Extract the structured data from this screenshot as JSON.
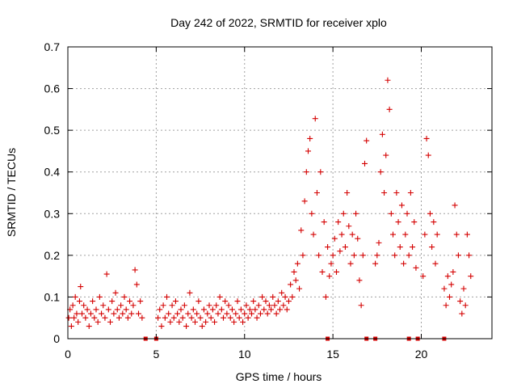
{
  "chart_data": {
    "type": "scatter",
    "title": "Day 242 of 2022, SRMTID for receiver xplo",
    "xlabel": "GPS time / hours",
    "ylabel": "SRMTID / TECUs",
    "xlim": [
      0,
      24
    ],
    "ylim": [
      0,
      0.7
    ],
    "xticks": [
      0,
      5,
      10,
      15,
      20
    ],
    "xtick_labels": [
      "0",
      "5",
      "10",
      "15",
      "20"
    ],
    "yticks": [
      0,
      0.1,
      0.2,
      0.3,
      0.4,
      0.5,
      0.6,
      0.7
    ],
    "ytick_labels": [
      "0",
      "0.1",
      "0.2",
      "0.3",
      "0.4",
      "0.5",
      "0.6",
      "0.7"
    ],
    "grid": true,
    "marker": "+",
    "series_color": "#d40000",
    "series": [
      {
        "name": "SRMTID",
        "points": [
          [
            0.05,
            0.05
          ],
          [
            0.12,
            0.07
          ],
          [
            0.2,
            0.03
          ],
          [
            0.28,
            0.08
          ],
          [
            0.35,
            0.05
          ],
          [
            0.42,
            0.1
          ],
          [
            0.5,
            0.06
          ],
          [
            0.58,
            0.04
          ],
          [
            0.66,
            0.09
          ],
          [
            0.72,
            0.125
          ],
          [
            0.8,
            0.06
          ],
          [
            0.9,
            0.08
          ],
          [
            1.0,
            0.05
          ],
          [
            1.1,
            0.07
          ],
          [
            1.2,
            0.03
          ],
          [
            1.3,
            0.06
          ],
          [
            1.4,
            0.09
          ],
          [
            1.5,
            0.05
          ],
          [
            1.6,
            0.07
          ],
          [
            1.7,
            0.04
          ],
          [
            1.8,
            0.1
          ],
          [
            1.9,
            0.06
          ],
          [
            2.0,
            0.08
          ],
          [
            2.1,
            0.05
          ],
          [
            2.2,
            0.155
          ],
          [
            2.3,
            0.07
          ],
          [
            2.4,
            0.04
          ],
          [
            2.5,
            0.09
          ],
          [
            2.6,
            0.06
          ],
          [
            2.7,
            0.11
          ],
          [
            2.8,
            0.07
          ],
          [
            2.9,
            0.05
          ],
          [
            3.0,
            0.08
          ],
          [
            3.1,
            0.06
          ],
          [
            3.2,
            0.1
          ],
          [
            3.3,
            0.07
          ],
          [
            3.4,
            0.05
          ],
          [
            3.5,
            0.09
          ],
          [
            3.6,
            0.06
          ],
          [
            3.7,
            0.08
          ],
          [
            3.8,
            0.165
          ],
          [
            3.9,
            0.13
          ],
          [
            4.0,
            0.06
          ],
          [
            4.1,
            0.09
          ],
          [
            4.2,
            0.05
          ],
          [
            5.1,
            0.05
          ],
          [
            5.2,
            0.07
          ],
          [
            5.3,
            0.03
          ],
          [
            5.4,
            0.08
          ],
          [
            5.5,
            0.05
          ],
          [
            5.6,
            0.1
          ],
          [
            5.7,
            0.06
          ],
          [
            5.8,
            0.04
          ],
          [
            5.9,
            0.08
          ],
          [
            6.0,
            0.05
          ],
          [
            6.1,
            0.09
          ],
          [
            6.2,
            0.06
          ],
          [
            6.3,
            0.04
          ],
          [
            6.4,
            0.07
          ],
          [
            6.5,
            0.05
          ],
          [
            6.6,
            0.08
          ],
          [
            6.7,
            0.03
          ],
          [
            6.8,
            0.06
          ],
          [
            6.9,
            0.11
          ],
          [
            7.0,
            0.05
          ],
          [
            7.1,
            0.07
          ],
          [
            7.2,
            0.04
          ],
          [
            7.3,
            0.06
          ],
          [
            7.4,
            0.09
          ],
          [
            7.5,
            0.05
          ],
          [
            7.6,
            0.03
          ],
          [
            7.7,
            0.07
          ],
          [
            7.8,
            0.04
          ],
          [
            7.9,
            0.06
          ],
          [
            8.0,
            0.08
          ],
          [
            8.1,
            0.05
          ],
          [
            8.2,
            0.07
          ],
          [
            8.3,
            0.04
          ],
          [
            8.4,
            0.08
          ],
          [
            8.5,
            0.06
          ],
          [
            8.6,
            0.1
          ],
          [
            8.7,
            0.07
          ],
          [
            8.8,
            0.05
          ],
          [
            8.9,
            0.09
          ],
          [
            9.0,
            0.06
          ],
          [
            9.1,
            0.08
          ],
          [
            9.2,
            0.05
          ],
          [
            9.3,
            0.07
          ],
          [
            9.4,
            0.04
          ],
          [
            9.5,
            0.06
          ],
          [
            9.6,
            0.09
          ],
          [
            9.7,
            0.05
          ],
          [
            9.8,
            0.07
          ],
          [
            9.9,
            0.04
          ],
          [
            10.0,
            0.06
          ],
          [
            10.1,
            0.08
          ],
          [
            10.2,
            0.05
          ],
          [
            10.3,
            0.07
          ],
          [
            10.4,
            0.06
          ],
          [
            10.5,
            0.09
          ],
          [
            10.6,
            0.07
          ],
          [
            10.7,
            0.05
          ],
          [
            10.8,
            0.08
          ],
          [
            10.9,
            0.06
          ],
          [
            11.0,
            0.1
          ],
          [
            11.1,
            0.07
          ],
          [
            11.2,
            0.09
          ],
          [
            11.3,
            0.06
          ],
          [
            11.4,
            0.08
          ],
          [
            11.5,
            0.07
          ],
          [
            11.6,
            0.1
          ],
          [
            11.7,
            0.08
          ],
          [
            11.8,
            0.06
          ],
          [
            11.9,
            0.09
          ],
          [
            12.0,
            0.07
          ],
          [
            12.1,
            0.11
          ],
          [
            12.2,
            0.08
          ],
          [
            12.3,
            0.1
          ],
          [
            12.4,
            0.07
          ],
          [
            12.5,
            0.09
          ],
          [
            12.6,
            0.13
          ],
          [
            12.7,
            0.1
          ],
          [
            12.8,
            0.16
          ],
          [
            12.9,
            0.14
          ],
          [
            13.0,
            0.18
          ],
          [
            13.1,
            0.12
          ],
          [
            13.2,
            0.26
          ],
          [
            13.3,
            0.2
          ],
          [
            13.4,
            0.33
          ],
          [
            13.5,
            0.4
          ],
          [
            13.6,
            0.45
          ],
          [
            13.7,
            0.48
          ],
          [
            13.8,
            0.3
          ],
          [
            13.9,
            0.25
          ],
          [
            14.0,
            0.528
          ],
          [
            14.1,
            0.35
          ],
          [
            14.2,
            0.2
          ],
          [
            14.3,
            0.4
          ],
          [
            14.4,
            0.16
          ],
          [
            14.5,
            0.28
          ],
          [
            14.6,
            0.1
          ],
          [
            14.7,
            0.22
          ],
          [
            14.8,
            0.15
          ],
          [
            14.9,
            0.18
          ],
          [
            15.0,
            0.2
          ],
          [
            15.1,
            0.24
          ],
          [
            15.2,
            0.16
          ],
          [
            15.3,
            0.28
          ],
          [
            15.4,
            0.21
          ],
          [
            15.5,
            0.25
          ],
          [
            15.6,
            0.3
          ],
          [
            15.7,
            0.22
          ],
          [
            15.8,
            0.35
          ],
          [
            15.9,
            0.27
          ],
          [
            16.0,
            0.18
          ],
          [
            16.1,
            0.25
          ],
          [
            16.2,
            0.2
          ],
          [
            16.3,
            0.3
          ],
          [
            16.4,
            0.24
          ],
          [
            16.5,
            0.14
          ],
          [
            16.6,
            0.08
          ],
          [
            16.7,
            0.2
          ],
          [
            16.8,
            0.42
          ],
          [
            16.9,
            0.475
          ],
          [
            17.4,
            0.18
          ],
          [
            17.5,
            0.2
          ],
          [
            17.6,
            0.23
          ],
          [
            17.7,
            0.4
          ],
          [
            17.8,
            0.49
          ],
          [
            17.9,
            0.35
          ],
          [
            18.0,
            0.44
          ],
          [
            18.1,
            0.62
          ],
          [
            18.2,
            0.55
          ],
          [
            18.3,
            0.3
          ],
          [
            18.4,
            0.25
          ],
          [
            18.5,
            0.2
          ],
          [
            18.6,
            0.35
          ],
          [
            18.7,
            0.28
          ],
          [
            18.8,
            0.22
          ],
          [
            18.9,
            0.32
          ],
          [
            19.0,
            0.18
          ],
          [
            19.1,
            0.25
          ],
          [
            19.2,
            0.3
          ],
          [
            19.3,
            0.2
          ],
          [
            19.4,
            0.35
          ],
          [
            19.5,
            0.22
          ],
          [
            19.6,
            0.28
          ],
          [
            19.7,
            0.17
          ],
          [
            20.1,
            0.15
          ],
          [
            20.2,
            0.25
          ],
          [
            20.3,
            0.48
          ],
          [
            20.4,
            0.44
          ],
          [
            20.5,
            0.3
          ],
          [
            20.6,
            0.22
          ],
          [
            20.7,
            0.28
          ],
          [
            20.8,
            0.18
          ],
          [
            20.9,
            0.25
          ],
          [
            21.3,
            0.12
          ],
          [
            21.4,
            0.08
          ],
          [
            21.5,
            0.15
          ],
          [
            21.6,
            0.1
          ],
          [
            21.7,
            0.13
          ],
          [
            21.8,
            0.16
          ],
          [
            21.9,
            0.32
          ],
          [
            22.0,
            0.25
          ],
          [
            22.1,
            0.2
          ],
          [
            22.2,
            0.09
          ],
          [
            22.3,
            0.06
          ],
          [
            22.4,
            0.12
          ],
          [
            22.5,
            0.08
          ],
          [
            22.6,
            0.25
          ],
          [
            22.7,
            0.2
          ],
          [
            22.8,
            0.15
          ]
        ]
      }
    ],
    "baseline_markers_x": [
      4.4,
      5.0,
      14.7,
      16.9,
      17.4,
      19.3,
      19.8,
      21.3
    ]
  }
}
